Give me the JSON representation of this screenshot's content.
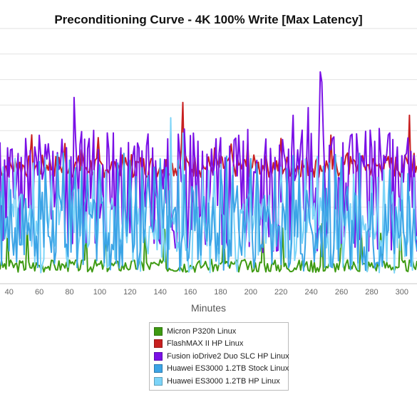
{
  "chart_data": {
    "type": "line",
    "title": "Preconditioning Curve - 4K 100% Write [Max Latency]",
    "xlabel": "Minutes",
    "ylabel": "",
    "x_ticks": [
      40,
      60,
      80,
      100,
      120,
      140,
      160,
      180,
      200,
      220,
      240,
      260,
      280,
      300
    ],
    "xlim": [
      34,
      310
    ],
    "ylim": [
      0,
      10
    ],
    "y_ticks": [
      0,
      1,
      2,
      3,
      4,
      5,
      6,
      7,
      8,
      9,
      10
    ],
    "grid": "horizontal",
    "legend_position": "bottom-center",
    "series": [
      {
        "name": "Micron P320h Linux",
        "color": "#3e9a12",
        "base": 0.7,
        "amp": 0.25,
        "spike_every": 13,
        "spike_value": 2.3,
        "seed": 3
      },
      {
        "name": "FlashMAX II HP Linux",
        "color": "#c82020",
        "base": 4.6,
        "amp": 0.45,
        "spike_every": 11,
        "spike_value": 5.6,
        "seed": 7,
        "peaks": [
          {
            "x": 155,
            "y": 7.1
          },
          {
            "x": 305,
            "y": 6.6
          }
        ]
      },
      {
        "name": "Fusion ioDrive2 Duo SLC HP Linux",
        "color": "#7a10e6",
        "base": 3.6,
        "amp": 2.4,
        "spike_every": 3,
        "spike_value": 5.8,
        "seed": 11,
        "peaks": [
          {
            "x": 83,
            "y": 7.3
          },
          {
            "x": 228,
            "y": 6.6
          },
          {
            "x": 238,
            "y": 6.9
          },
          {
            "x": 246,
            "y": 8.3
          },
          {
            "x": 247,
            "y": 7.9
          }
        ]
      },
      {
        "name": "Huawei ES3000 1.2TB Stock Linux",
        "color": "#3ca4e6",
        "base": 2.2,
        "amp": 1.7,
        "spike_every": 4,
        "spike_value": 4.9,
        "seed": 17
      },
      {
        "name": "Huawei ES3000 1.2TB HP Linux",
        "color": "#7cd4f8",
        "base": 2.0,
        "amp": 1.6,
        "spike_every": 4,
        "spike_value": 4.8,
        "seed": 23,
        "peaks": [
          {
            "x": 147,
            "y": 6.5
          },
          {
            "x": 155,
            "y": 5.9
          }
        ]
      }
    ]
  }
}
